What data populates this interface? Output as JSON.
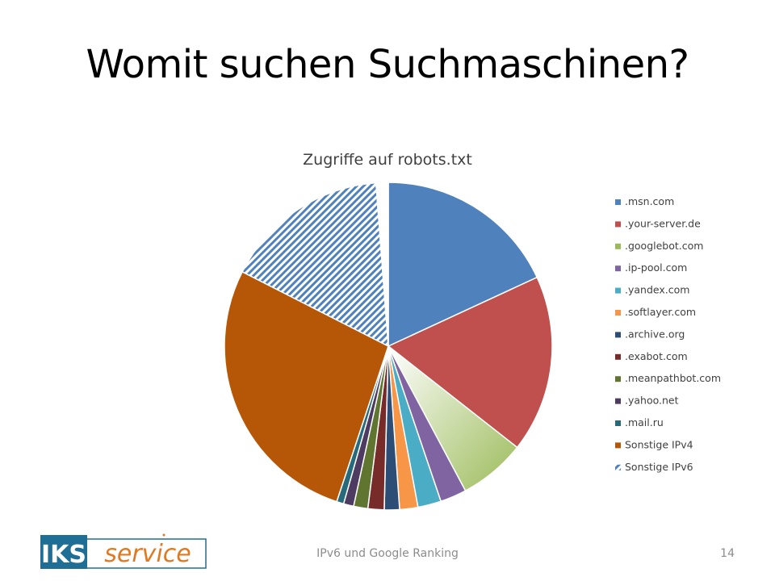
{
  "slide": {
    "title": "Womit suchen Suchmaschinen?",
    "footer": "IPv6 und Google Ranking",
    "page_number": "14"
  },
  "logo": {
    "text": "IKS service",
    "colors": {
      "box": "#1f6e96",
      "script": "#e07a22"
    }
  },
  "chart_data": {
    "type": "pie",
    "title": "Zugriffe auf robots.txt",
    "legend_position": "right",
    "start_angle_deg": 0,
    "direction": "clockwise",
    "series": [
      {
        "name": ".msn.com",
        "percent": 18.1,
        "color": "#4f81bd",
        "pattern": "solid"
      },
      {
        "name": ".your-server.de",
        "percent": 17.5,
        "color": "#c0504d",
        "pattern": "solid"
      },
      {
        "name": ".googlebot.com",
        "percent": 6.6,
        "color": "#9bbb59",
        "pattern": "gradient"
      },
      {
        "name": ".ip-pool.com",
        "percent": 2.6,
        "color": "#8064a2",
        "pattern": "solid"
      },
      {
        "name": ".yandex.com",
        "percent": 2.3,
        "color": "#4bacc6",
        "pattern": "solid"
      },
      {
        "name": ".softlayer.com",
        "percent": 1.8,
        "color": "#f79646",
        "pattern": "solid"
      },
      {
        "name": ".archive.org",
        "percent": 1.5,
        "color": "#2c4d75",
        "pattern": "solid"
      },
      {
        "name": ".exabot.com",
        "percent": 1.6,
        "color": "#772c2a",
        "pattern": "solid"
      },
      {
        "name": ".meanpathbot.com",
        "percent": 1.4,
        "color": "#5f7530",
        "pattern": "solid"
      },
      {
        "name": ".yahoo.net",
        "percent": 1.0,
        "color": "#4d3b62",
        "pattern": "solid"
      },
      {
        "name": ".mail.ru",
        "percent": 0.7,
        "color": "#276a7c",
        "pattern": "solid"
      },
      {
        "name": "Sonstige IPv4",
        "percent": 27.4,
        "color": "#b65708",
        "pattern": "solid"
      },
      {
        "name": "Sonstige IPv6",
        "percent": 16.3,
        "color": "#4f81bd",
        "pattern": "hatched"
      },
      {
        "name": "",
        "percent": 1.2,
        "color": "#ffffff",
        "pattern": "solid"
      }
    ]
  }
}
